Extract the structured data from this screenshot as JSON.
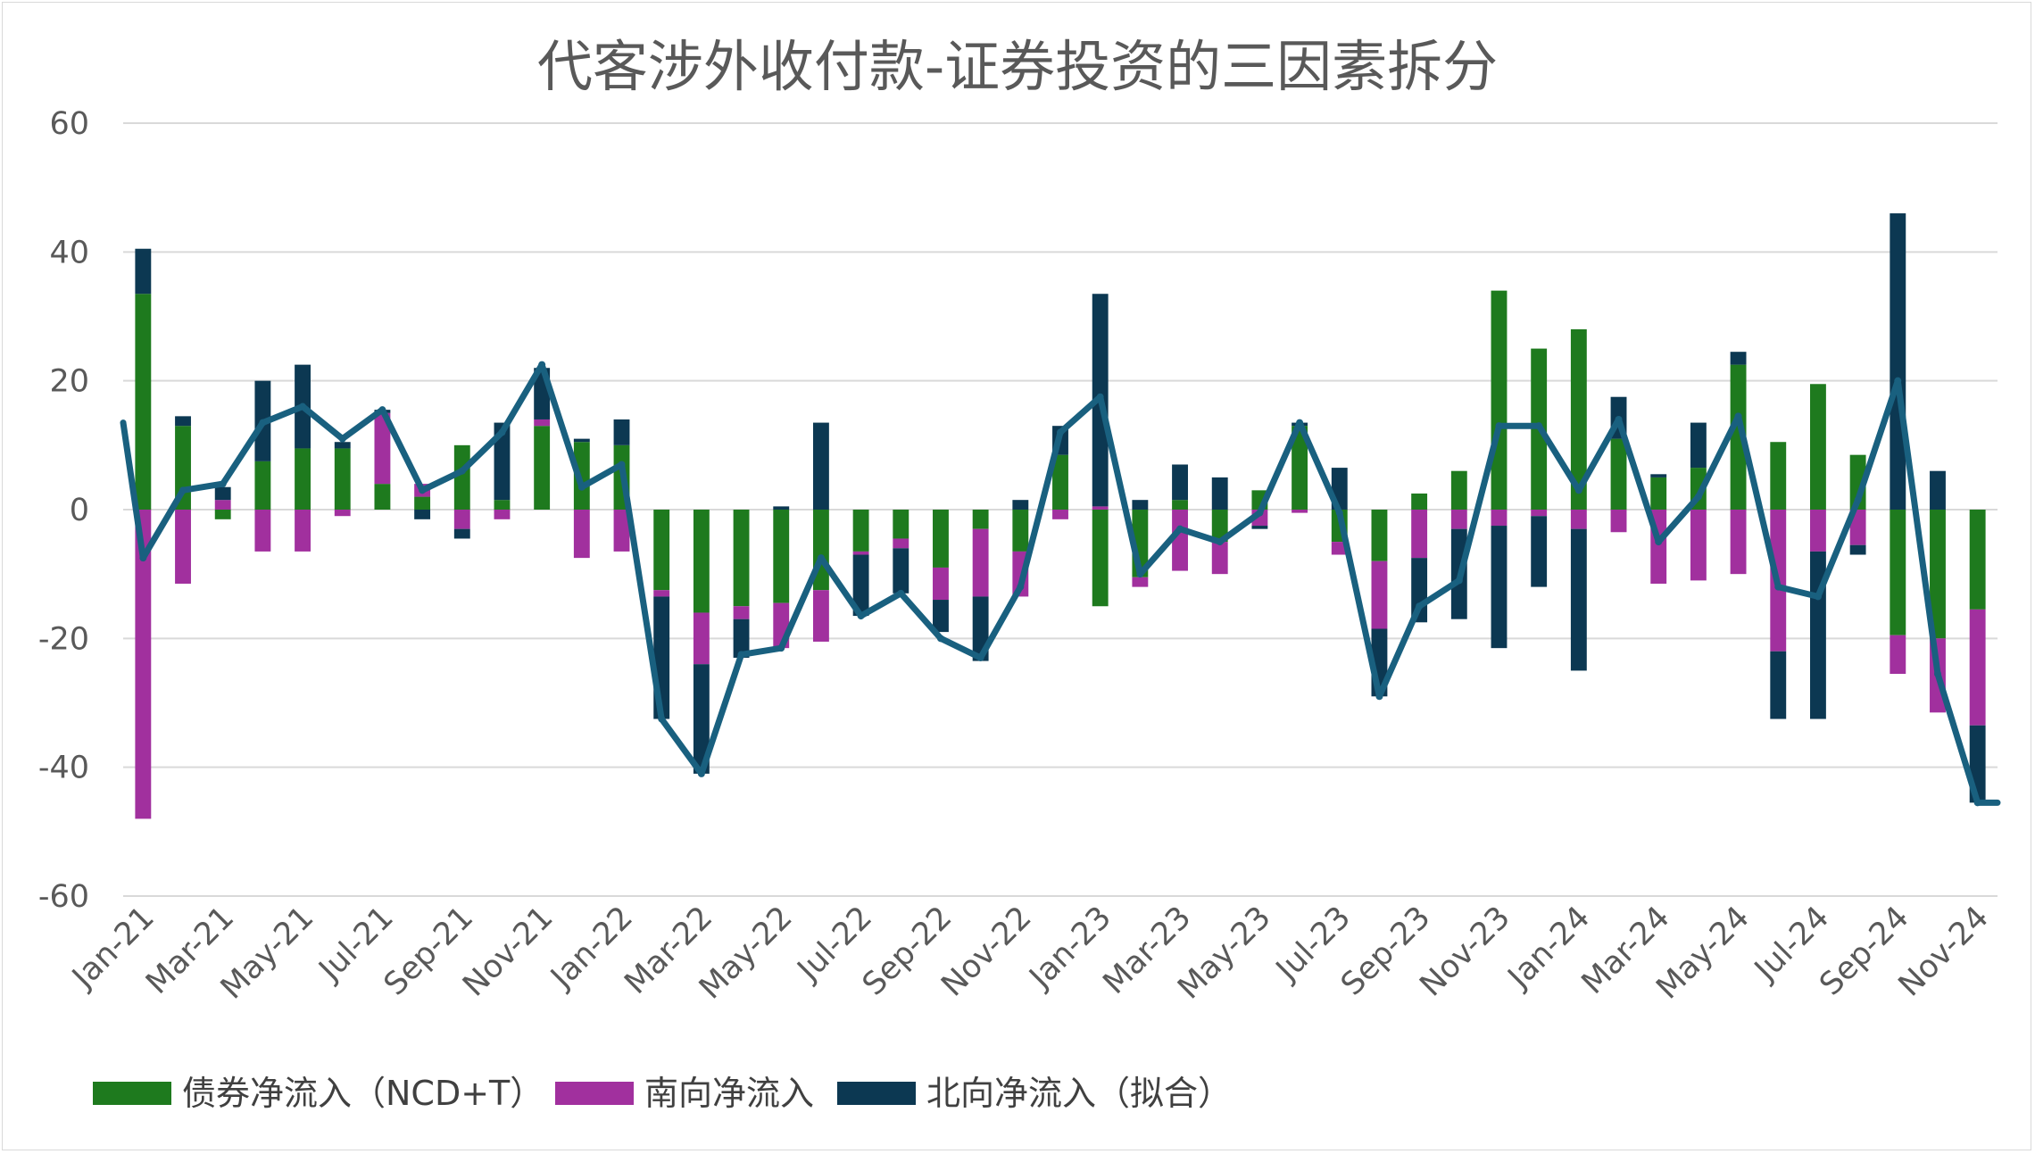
{
  "chart_data": {
    "type": "bar",
    "stacked": true,
    "title": "代客涉外收付款-证券投资的三因素拆分",
    "xlabel": "",
    "ylabel": "",
    "ylim": [
      -60,
      60
    ],
    "yticks": [
      60,
      40,
      20,
      0,
      -20,
      -40,
      -60
    ],
    "grid": true,
    "legend_position": "bottom-left",
    "tick_every": 2,
    "categories": [
      "Jan-21",
      "Feb-21",
      "Mar-21",
      "Apr-21",
      "May-21",
      "Jun-21",
      "Jul-21",
      "Aug-21",
      "Sep-21",
      "Oct-21",
      "Nov-21",
      "Dec-21",
      "Jan-22",
      "Feb-22",
      "Mar-22",
      "Apr-22",
      "May-22",
      "Jun-22",
      "Jul-22",
      "Aug-22",
      "Sep-22",
      "Oct-22",
      "Nov-22",
      "Dec-22",
      "Jan-23",
      "Feb-23",
      "Mar-23",
      "Apr-23",
      "May-23",
      "Jun-23",
      "Jul-23",
      "Aug-23",
      "Sep-23",
      "Oct-23",
      "Nov-23",
      "Dec-23",
      "Jan-24",
      "Feb-24",
      "Mar-24",
      "Apr-24",
      "May-24",
      "Jun-24",
      "Jul-24",
      "Aug-24",
      "Sep-24",
      "Oct-24",
      "Nov-24"
    ],
    "series": [
      {
        "name": "债券净流入（NCD+T）",
        "kind": "bar",
        "color": "#1e7a1e",
        "values": [
          33.5,
          13,
          -1.5,
          7.5,
          9.5,
          9.5,
          4,
          2,
          10,
          1.5,
          13,
          10.5,
          10,
          -12.5,
          -16,
          -15,
          -14.5,
          -12.5,
          -6.5,
          -4.5,
          -9,
          -3,
          -6.5,
          8.5,
          -15,
          -10.5,
          1.5,
          -5,
          3,
          13,
          -5,
          -8,
          2.5,
          6,
          34,
          25,
          28,
          11,
          5,
          6.5,
          22.5,
          10.5,
          19.5,
          8.5,
          -19.5,
          -20,
          -15.5
        ]
      },
      {
        "name": "南向净流入",
        "kind": "bar",
        "color": "#a1309e",
        "values": [
          -48,
          -11.5,
          1.5,
          -6.5,
          -6.5,
          -1,
          11,
          2,
          -3,
          -1.5,
          1,
          -7.5,
          -6.5,
          -1,
          -8,
          -2,
          -7,
          -8,
          -0.5,
          -1.5,
          -5,
          -10.5,
          -7,
          -1.5,
          0.5,
          -1.5,
          -9.5,
          -5,
          -2.5,
          -0.5,
          -2,
          -10.5,
          -7.5,
          -3,
          -2.5,
          -1,
          -3,
          -3.5,
          -11.5,
          -11,
          -10,
          -22,
          -6.5,
          -5.5,
          -6,
          -11.5,
          -18
        ]
      },
      {
        "name": "北向净流入（拟合）",
        "kind": "bar",
        "color": "#0c3852",
        "values": [
          7,
          1.5,
          2,
          12.5,
          13,
          1,
          0.5,
          -1.5,
          -1.5,
          12,
          8,
          0.5,
          4,
          -19,
          -17,
          -6,
          0.5,
          13.5,
          -9.5,
          -7,
          -5,
          -10,
          1.5,
          4.5,
          33,
          1.5,
          5.5,
          5,
          -0.5,
          0.5,
          6.5,
          -10.5,
          -10,
          -14,
          -19,
          -11,
          -22,
          6.5,
          0.5,
          7,
          2,
          -10.5,
          -26,
          -1.5,
          46,
          6,
          -12
        ]
      },
      {
        "name": "",
        "kind": "line",
        "color": "#19607f",
        "values": [
          -7.5,
          3,
          4,
          13.5,
          16,
          11,
          15.5,
          3,
          6,
          12,
          22.5,
          3.5,
          7,
          -32.5,
          -41,
          -22.5,
          -21.5,
          -7.5,
          -16.5,
          -13,
          -20,
          -23,
          -12,
          12,
          17.5,
          -10,
          -3,
          -5,
          -0.5,
          13.5,
          -0.5,
          -29,
          -15,
          -11,
          13,
          13,
          3,
          14,
          -5,
          2,
          14.5,
          -12,
          -13.5,
          1.5,
          20,
          -25.5,
          -45.5
        ]
      }
    ],
    "line_lead_in": 13.5,
    "line_lead_out": -45.5
  },
  "legend": [
    {
      "label": "债券净流入（NCD+T）",
      "color": "#1e7a1e"
    },
    {
      "label": "南向净流入",
      "color": "#a1309e"
    },
    {
      "label": "北向净流入（拟合）",
      "color": "#0c3852"
    }
  ]
}
